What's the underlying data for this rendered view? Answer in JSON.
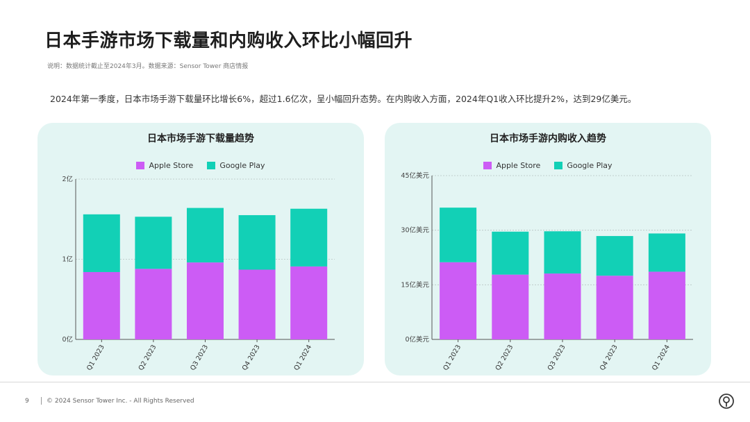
{
  "page": {
    "title": "日本手游市场下载量和内购收入环比小幅回升",
    "note": "说明：数据统计截止至2024年3月。数据来源：Sensor Tower 商店情报",
    "summary": "2024年第一季度，日本市场手游下载量环比增长6%，超过1.6亿次，呈小幅回升态势。在内购收入方面，2024年Q1收入环比提升2%，达到29亿美元。"
  },
  "colors": {
    "apple": "#cc5cf5",
    "google": "#12d0b6",
    "panel_bg": "#e3f5f3"
  },
  "legend": {
    "apple": "Apple Store",
    "google": "Google Play"
  },
  "chart_data": [
    {
      "type": "bar",
      "stacked": true,
      "title": "日本市场手游下载量趋势",
      "categories": [
        "Q1 2023",
        "Q2 2023",
        "Q3 2023",
        "Q4 2023",
        "Q1 2024"
      ],
      "series": [
        {
          "name": "Apple Store",
          "values": [
            0.84,
            0.88,
            0.96,
            0.87,
            0.91
          ]
        },
        {
          "name": "Google Play",
          "values": [
            0.72,
            0.65,
            0.68,
            0.68,
            0.72
          ]
        }
      ],
      "ylim": [
        0,
        2
      ],
      "yticks": [
        0,
        1,
        2
      ],
      "ytick_labels": [
        "0亿",
        "1亿",
        "2亿"
      ],
      "grid": true,
      "legend_position": "top"
    },
    {
      "type": "bar",
      "stacked": true,
      "title": "日本市场手游内购收入趋势",
      "categories": [
        "Q1 2023",
        "Q2 2023",
        "Q3 2023",
        "Q4 2023",
        "Q1 2024"
      ],
      "series": [
        {
          "name": "Apple Store",
          "values": [
            21.2,
            17.8,
            18.1,
            17.5,
            18.6
          ]
        },
        {
          "name": "Google Play",
          "values": [
            15.0,
            11.8,
            11.6,
            10.9,
            10.5
          ]
        }
      ],
      "ylim": [
        0,
        45
      ],
      "yticks": [
        0,
        15,
        30,
        45
      ],
      "ytick_labels": [
        "0亿美元",
        "15亿美元",
        "30亿美元",
        "45亿美元"
      ],
      "grid": true,
      "legend_position": "top"
    }
  ],
  "footer": {
    "page_number": "9",
    "copyright": "© 2024 Sensor Tower Inc. - All Rights Reserved"
  }
}
